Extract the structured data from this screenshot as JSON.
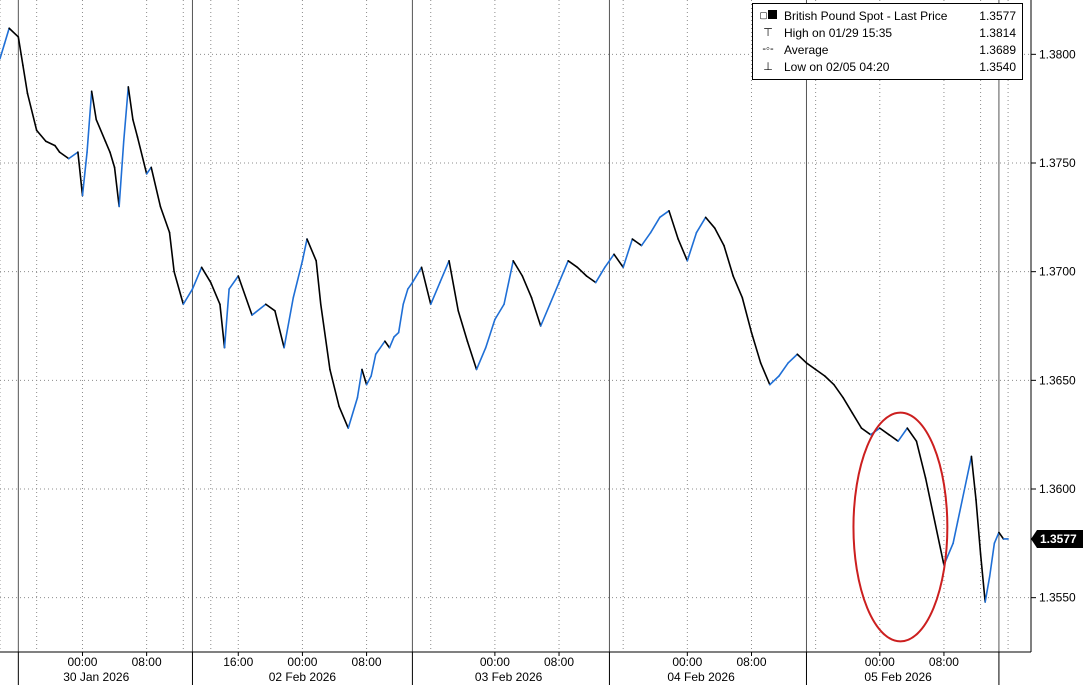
{
  "legend": {
    "rows": [
      {
        "label": "British Pound Spot - Last Price",
        "value": "1.3577",
        "icon": "filled-square-icon"
      },
      {
        "label": "High on 01/29 15:35",
        "value": "1.3814",
        "icon": "high-marker-icon"
      },
      {
        "label": "Average",
        "value": "1.3689",
        "icon": "average-marker-icon"
      },
      {
        "label": "Low on 02/05 04:20",
        "value": "1.3540",
        "icon": "low-marker-icon"
      }
    ]
  },
  "last_price_tag": "1.3577",
  "colors": {
    "line_up": "#1f6fd6",
    "line_down": "#000000",
    "highlight": "#cc1f1f",
    "grid": "#888888"
  },
  "chart_data": {
    "type": "line",
    "series": [
      {
        "name": "British Pound Spot - Last Price",
        "x": [
          0,
          1,
          2,
          4,
          5,
          6,
          8,
          10,
          12,
          13,
          15,
          17,
          18,
          19,
          20,
          21,
          23,
          24,
          25,
          26,
          27,
          28,
          29,
          30,
          32,
          33,
          35,
          37,
          38,
          40,
          42,
          44,
          46,
          48,
          49,
          50,
          52,
          55,
          58,
          60,
          62,
          64,
          66,
          67,
          69,
          70,
          72,
          74,
          76,
          78,
          79,
          80,
          81,
          82,
          84,
          85,
          86,
          87,
          88,
          89,
          90,
          92,
          94,
          96,
          98,
          100,
          102,
          104,
          106,
          108,
          110,
          112,
          114,
          116,
          118,
          120,
          122,
          124,
          126,
          128,
          130,
          132,
          134,
          136,
          138,
          140,
          142,
          144,
          146,
          148,
          150,
          152,
          154,
          156,
          158,
          160,
          162,
          164,
          166,
          168,
          170,
          172,
          174,
          176,
          178,
          180,
          182,
          184,
          186,
          188,
          190,
          192,
          194,
          196,
          198,
          200,
          202,
          204,
          206,
          208,
          209,
          210,
          211,
          212,
          213,
          214,
          215,
          216,
          217,
          218,
          219,
          220
        ],
        "values": [
          1.3798,
          1.3805,
          1.3812,
          1.3808,
          1.3795,
          1.3782,
          1.3765,
          1.376,
          1.3758,
          1.3755,
          1.3752,
          1.3755,
          1.3735,
          1.3755,
          1.3783,
          1.377,
          1.376,
          1.3755,
          1.3748,
          1.373,
          1.376,
          1.3785,
          1.377,
          1.3762,
          1.3745,
          1.3748,
          1.373,
          1.3718,
          1.37,
          1.3685,
          1.3692,
          1.3702,
          1.3695,
          1.3685,
          1.3665,
          1.3692,
          1.3698,
          1.368,
          1.3685,
          1.3682,
          1.3665,
          1.3688,
          1.3705,
          1.3715,
          1.3705,
          1.3685,
          1.3655,
          1.3638,
          1.3628,
          1.3642,
          1.3655,
          1.3648,
          1.3652,
          1.3662,
          1.3668,
          1.3665,
          1.367,
          1.3672,
          1.3685,
          1.3692,
          1.3695,
          1.3702,
          1.3685,
          1.3695,
          1.3705,
          1.3682,
          1.3668,
          1.3655,
          1.3665,
          1.3678,
          1.3685,
          1.3705,
          1.3698,
          1.3688,
          1.3675,
          1.3685,
          1.3695,
          1.3705,
          1.3702,
          1.3698,
          1.3695,
          1.3702,
          1.3708,
          1.3702,
          1.3715,
          1.3712,
          1.3718,
          1.3725,
          1.3728,
          1.3715,
          1.3705,
          1.3718,
          1.3725,
          1.372,
          1.3712,
          1.3698,
          1.3688,
          1.3672,
          1.3658,
          1.3648,
          1.3652,
          1.3658,
          1.3662,
          1.3658,
          1.3655,
          1.3652,
          1.3648,
          1.3642,
          1.3635,
          1.3628,
          1.3625,
          1.3628,
          1.3625,
          1.3622,
          1.3628,
          1.3622,
          1.3605,
          1.3585,
          1.3565,
          1.3575,
          1.3585,
          1.3595,
          1.3605,
          1.3615,
          1.3595,
          1.357,
          1.3548,
          1.356,
          1.3575,
          1.358,
          1.3577,
          1.3577
        ]
      }
    ],
    "high": {
      "label": "High on 01/29 15:35",
      "value": 1.3814
    },
    "average": {
      "label": "Average",
      "value": 1.3689
    },
    "low": {
      "label": "Low on 02/05 04:20",
      "value": 1.354
    },
    "last": 1.3577,
    "ylim": [
      1.3525,
      1.3825
    ],
    "xlim": [
      0,
      225
    ],
    "y_ticks": [
      "1.3550",
      "1.3600",
      "1.3650",
      "1.3700",
      "1.3750",
      "1.3800"
    ],
    "x_ticks": [
      {
        "x": 18,
        "label": "00:00"
      },
      {
        "x": 32,
        "label": "08:00"
      },
      {
        "x": 52,
        "label": "16:00"
      },
      {
        "x": 66,
        "label": "00:00"
      },
      {
        "x": 80,
        "label": "08:00"
      },
      {
        "x": 108,
        "label": "00:00"
      },
      {
        "x": 122,
        "label": "08:00"
      },
      {
        "x": 150,
        "label": "00:00"
      },
      {
        "x": 164,
        "label": "08:00"
      },
      {
        "x": 192,
        "label": "00:00"
      },
      {
        "x": 206,
        "label": "08:00"
      }
    ],
    "x_minor_grid": [
      0,
      8,
      40,
      46,
      94,
      136,
      178,
      214,
      220
    ],
    "day_dividers": [
      4,
      42,
      90,
      133,
      176,
      218
    ],
    "day_labels": [
      {
        "x": 21,
        "label": "30 Jan 2026"
      },
      {
        "x": 66,
        "label": "02 Feb 2026"
      },
      {
        "x": 111,
        "label": "03 Feb 2026"
      },
      {
        "x": 153,
        "label": "04 Feb 2026"
      },
      {
        "x": 196,
        "label": "05 Feb 2026"
      }
    ],
    "grid": true,
    "legend_position": "top-right",
    "annotation": {
      "shape": "ellipse",
      "around_x": [
        188,
        205
      ],
      "around_y": [
        1.354,
        1.3625
      ]
    }
  }
}
